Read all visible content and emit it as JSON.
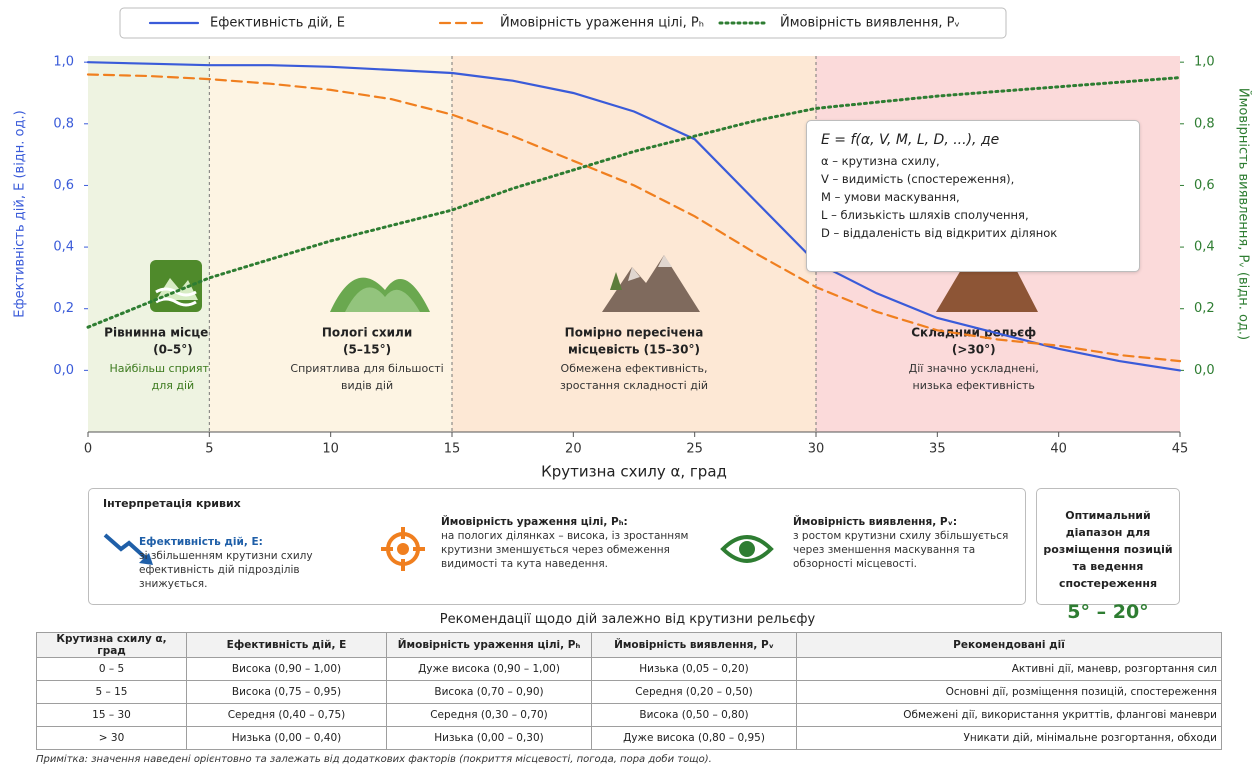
{
  "chart_data": {
    "type": "line",
    "legend": "top",
    "xlabel": "Крутизна схилу α, град",
    "ylabel": "Ефективність дій, E (відн. од.)",
    "y2label": "Ймовірність виявлення, Pᵥ (відн. од.)",
    "x": [
      0,
      2.5,
      5,
      7.5,
      10,
      12.5,
      15,
      17.5,
      20,
      22.5,
      25,
      27.5,
      30,
      32.5,
      35,
      37.5,
      40,
      42.5,
      45
    ],
    "series": [
      {
        "name": "Ефективність дій, E",
        "color": "#3a5bd9",
        "dash": "solid",
        "values": [
          1.0,
          0.995,
          0.99,
          0.99,
          0.985,
          0.975,
          0.965,
          0.94,
          0.9,
          0.84,
          0.75,
          0.55,
          0.35,
          0.25,
          0.17,
          0.12,
          0.07,
          0.03,
          0.0
        ]
      },
      {
        "name": "Ймовірність ураження цілі, Pₕ",
        "color": "#f07f1f",
        "dash": "dashed",
        "values": [
          0.96,
          0.955,
          0.945,
          0.93,
          0.91,
          0.88,
          0.83,
          0.76,
          0.68,
          0.6,
          0.5,
          0.38,
          0.27,
          0.19,
          0.13,
          0.1,
          0.08,
          0.05,
          0.03
        ]
      },
      {
        "name": "Ймовірність виявлення, Pᵥ",
        "color": "#2e7d32",
        "dash": "dotted",
        "axis": "y2",
        "values": [
          0.14,
          0.22,
          0.3,
          0.36,
          0.42,
          0.47,
          0.52,
          0.59,
          0.65,
          0.71,
          0.76,
          0.81,
          0.85,
          0.87,
          0.89,
          0.905,
          0.92,
          0.935,
          0.95
        ]
      }
    ],
    "xlim": [
      0,
      45
    ],
    "xticks": [
      0,
      5,
      10,
      15,
      20,
      25,
      30,
      35,
      40,
      45
    ],
    "ylim": [
      -0.2,
      1.02
    ],
    "yticks": [
      {
        "value": 0,
        "label": "0,0"
      },
      {
        "value": 0.2,
        "label": "0,2"
      },
      {
        "value": 0.4,
        "label": "0,4"
      },
      {
        "value": 0.6,
        "label": "0,6"
      },
      {
        "value": 0.8,
        "label": "0,8"
      },
      {
        "value": 1,
        "label": "1,0"
      }
    ],
    "y2lim": [
      -0.2,
      1.02
    ],
    "y2ticks": [
      {
        "value": 0,
        "label": "0,0"
      },
      {
        "value": 0.2,
        "label": "0,2"
      },
      {
        "value": 0.4,
        "label": "0,4"
      },
      {
        "value": 0.6,
        "label": "0,6"
      },
      {
        "value": 0.8,
        "label": "0,8"
      },
      {
        "value": 1,
        "label": "1,0"
      }
    ],
    "zones": [
      {
        "bounds": [
          0,
          5
        ],
        "color": "#eef3e1",
        "title": [
          "Рівнинна місцевість",
          "(0–5°)"
        ],
        "note": [
          "Найбільш сприятлива",
          "для дій"
        ]
      },
      {
        "bounds": [
          5,
          15
        ],
        "color": "#fdf4e3",
        "title": [
          "Пологі схили",
          "(5–15°)"
        ],
        "note": [
          "Сприятлива для більшості",
          "видів дій"
        ]
      },
      {
        "bounds": [
          15,
          30
        ],
        "color": "#fde8d5",
        "title": [
          "Помірно пересічена",
          "місцевість (15–30°)"
        ],
        "note": [
          "Обмежена ефективність,",
          "зростання складності дій"
        ]
      },
      {
        "bounds": [
          30,
          45
        ],
        "color": "#fbdada",
        "title": [
          "Складний рельєф",
          "(>30°)"
        ],
        "note": [
          "Дії значно ускладнені,",
          "низька ефективність"
        ]
      }
    ],
    "formula": {
      "expression": "E = f(α, V, M, L, D, ...), де",
      "lines": [
        "α – крутизна схилу,",
        "V – видимість (спостереження),",
        "M – умови маскування,",
        "L – близькість шляхів сполучення,",
        "D – віддаленість від відкритих ділянок"
      ]
    }
  },
  "interpretation": {
    "title": "Інтерпретація кривих",
    "items": [
      {
        "title": "Ефективність дій, E:",
        "text": "зі збільшенням крутизни схилу ефективність дій підрозділів знижується."
      },
      {
        "title": "Ймовірність ураження цілі, Pₕ:",
        "text": "на пологих ділянках – висока, із зростанням крутизни зменшується через обмеження видимості та кута наведення."
      },
      {
        "title": "Ймовірність виявлення, Pᵥ:",
        "text": "з ростом крутизни схилу збільшується через зменшення маскування та обзорності місцевості."
      }
    ]
  },
  "optimal": {
    "title": "Оптимальний діапазон для розміщення позицій та ведення спостереження",
    "range": "5° – 20°"
  },
  "table": {
    "title": "Рекомендації щодо дій залежно від крутизни рельєфу",
    "header": [
      "Крутизна схилу α, град",
      "Ефективність дій, E",
      "Ймовірність ураження цілі, Pₕ",
      "Ймовірність виявлення, Pᵥ",
      "Рекомендовані дії"
    ],
    "rows": [
      [
        "0 – 5",
        "Висока (0,90 – 1,00)",
        "Дуже висока (0,90 – 1,00)",
        "Низька (0,05 – 0,20)",
        "Активні дії, маневр, розгортання сил"
      ],
      [
        "5 – 15",
        "Висока (0,75 – 0,95)",
        "Висока (0,70 – 0,90)",
        "Середня (0,20 – 0,50)",
        "Основні дії, розміщення позицій, спостереження"
      ],
      [
        "15 – 30",
        "Середня (0,40 – 0,75)",
        "Середня (0,30 – 0,70)",
        "Висока (0,50 – 0,80)",
        "Обмежені дії, використання укриттів, флангові маневри"
      ],
      [
        "> 30",
        "Низька (0,00 – 0,40)",
        "Низька (0,00 – 0,30)",
        "Дуже висока (0,80 – 0,95)",
        "Уникати дій, мінімальне розгортання, обходи"
      ]
    ]
  },
  "note": "Примітка: значення наведені орієнтовно та залежать від додаткових факторів (покриття місцевості, погода, пора доби тощо)."
}
